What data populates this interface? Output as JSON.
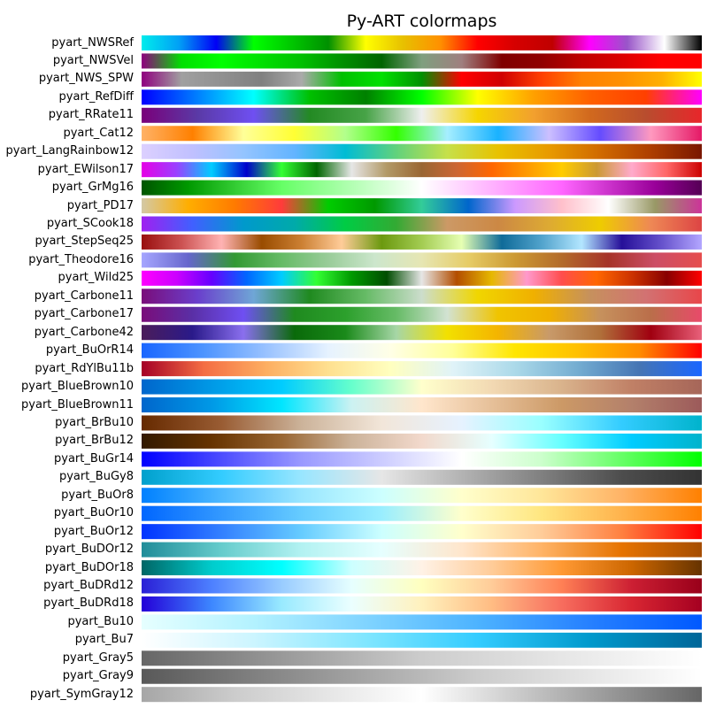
{
  "chart_data": {
    "type": "colormap",
    "title": "Py-ART colormaps",
    "colormaps": [
      {
        "name": "pyart_NWSRef",
        "colors": [
          "#00ecec",
          "#01a0f6",
          "#0000f6",
          "#00ff00",
          "#00c800",
          "#009000",
          "#ffff00",
          "#e7c000",
          "#ff9000",
          "#ff0000",
          "#d60000",
          "#c00000",
          "#ff00ff",
          "#9955c9",
          "#ffffff",
          "#000000"
        ]
      },
      {
        "name": "pyart_NWSVel",
        "colors": [
          "#90007f",
          "#00e000",
          "#00ff00",
          "#00e000",
          "#00c000",
          "#009000",
          "#006400",
          "#7f9f7f",
          "#9f7f7f",
          "#7f0000",
          "#900000",
          "#c00000",
          "#dc0000",
          "#ff0000",
          "#ff0000"
        ]
      },
      {
        "name": "pyart_NWS_SPW",
        "colors": [
          "#90007f",
          "#a0a0a0",
          "#909090",
          "#808080",
          "#aaaaaa",
          "#00c000",
          "#00e000",
          "#009000",
          "#ff0000",
          "#d00000",
          "#ff4000",
          "#ff8000",
          "#ff9000",
          "#ffb000",
          "#ffff00"
        ]
      },
      {
        "name": "pyart_RefDiff",
        "colors": [
          "#0000ff",
          "#0080ff",
          "#00ffff",
          "#00c000",
          "#008000",
          "#00ff00",
          "#ffff00",
          "#ffa000",
          "#ff6000",
          "#ff4000",
          "#ff00ff"
        ]
      },
      {
        "name": "pyart_RRate11",
        "colors": [
          "#7a007a",
          "#5a3aa6",
          "#6f4ff2",
          "#238a23",
          "#47a347",
          "#efefef",
          "#f5d500",
          "#f2a02e",
          "#d1691e",
          "#b84d2e",
          "#e8262b"
        ]
      },
      {
        "name": "pyart_Cat12",
        "colors": [
          "#ffb266",
          "#ff8000",
          "#ffff99",
          "#ffff33",
          "#b2ff8c",
          "#33ff00",
          "#a6eeff",
          "#19b2ff",
          "#ccbfff",
          "#654cff",
          "#ff99bf",
          "#e51966"
        ]
      },
      {
        "name": "pyart_LangRainbow12",
        "colors": [
          "#dcd0ff",
          "#c0c0ff",
          "#94c4ff",
          "#63b4ff",
          "#00bcd4",
          "#61d27c",
          "#c6e04a",
          "#e8c200",
          "#e89a00",
          "#d06a00",
          "#ad3e00",
          "#7a1700"
        ]
      },
      {
        "name": "pyart_EWilson17",
        "colors": [
          "#e600e6",
          "#9a40ff",
          "#00ccff",
          "#0000cc",
          "#33ff33",
          "#006600",
          "#e6e6e6",
          "#b29966",
          "#996633",
          "#cc6633",
          "#ff6600",
          "#ff9900",
          "#ffcc00",
          "#cc9933",
          "#ffaacc",
          "#ff6666",
          "#cc0000"
        ]
      },
      {
        "name": "pyart_GrMg16",
        "colors": [
          "#005500",
          "#009900",
          "#33cc33",
          "#66ff66",
          "#99ff99",
          "#ccffcc",
          "#ffffff",
          "#ffccff",
          "#ff99ff",
          "#ff66ff",
          "#cc33cc",
          "#990099",
          "#550055"
        ]
      },
      {
        "name": "pyart_PD17",
        "colors": [
          "#d3c9a6",
          "#ffae00",
          "#ff7a00",
          "#ff3b3b",
          "#00cc00",
          "#009900",
          "#33cc99",
          "#0066cc",
          "#cc99ff",
          "#ffc0cb",
          "#ffffff",
          "#999966",
          "#cc3399"
        ]
      },
      {
        "name": "pyart_SCook18",
        "colors": [
          "#a020f0",
          "#4060ff",
          "#0099cc",
          "#00aaaa",
          "#00cc44",
          "#33aa33",
          "#cc9966",
          "#cc8844",
          "#ddaa33",
          "#eecc00",
          "#ee8855",
          "#dd4444"
        ]
      },
      {
        "name": "pyart_StepSeq25",
        "colors": [
          "#990f0f",
          "#cc5252",
          "#ffb3b3",
          "#994c00",
          "#cc8033",
          "#ffcc99",
          "#6b990f",
          "#a3cc52",
          "#e6ffb3",
          "#0f6b99",
          "#52a3cc",
          "#b3e6ff",
          "#260f99",
          "#6652cc",
          "#b3a6ff"
        ]
      },
      {
        "name": "pyart_Theodore16",
        "colors": [
          "#a6a6ff",
          "#6666cc",
          "#339933",
          "#66bb66",
          "#99cc99",
          "#cce6cc",
          "#e6e6b3",
          "#e6cc66",
          "#cc9933",
          "#b36b2a",
          "#a63329",
          "#cc4d66",
          "#e64d4d"
        ]
      },
      {
        "name": "pyart_Wild25",
        "colors": [
          "#ff00ff",
          "#cc00ff",
          "#6600ff",
          "#0066ff",
          "#00ccff",
          "#33ff33",
          "#009900",
          "#004d00",
          "#e6e6e6",
          "#b34d00",
          "#e6b800",
          "#ff99cc",
          "#ff4d4d",
          "#ff6600",
          "#cc3300",
          "#880000",
          "#ff0000"
        ]
      },
      {
        "name": "pyart_Carbone11",
        "colors": [
          "#7a0d7a",
          "#6a3fcc",
          "#6fa6d6",
          "#1f8a1f",
          "#66bb66",
          "#ccddcc",
          "#f0d600",
          "#f0b000",
          "#c6915d",
          "#d27272",
          "#e8464a"
        ]
      },
      {
        "name": "pyart_Carbone17",
        "colors": [
          "#7a0d7a",
          "#5a2fa6",
          "#6f4ff2",
          "#1f8a1f",
          "#2ca02c",
          "#66bb66",
          "#d2e2d2",
          "#f0c400",
          "#f0b000",
          "#c6915d",
          "#ba6e4a",
          "#e84a6a"
        ]
      },
      {
        "name": "pyart_Carbone42",
        "colors": [
          "#4b1c5a",
          "#2a1a8a",
          "#8a6fee",
          "#0a6a0a",
          "#1a8a1a",
          "#a6d6a6",
          "#f2e000",
          "#f4b400",
          "#c89a6a",
          "#b0703a",
          "#a00010",
          "#e8607a"
        ]
      },
      {
        "name": "pyart_BuOrR14",
        "colors": [
          "#1a66ff",
          "#4d94ff",
          "#99c2ff",
          "#e6f2ff",
          "#ffffe6",
          "#ffff99",
          "#ffe600",
          "#ffc000",
          "#ff8c00",
          "#ff0000"
        ]
      },
      {
        "name": "pyart_RdYlBu11b",
        "colors": [
          "#a50026",
          "#f46d43",
          "#fdae61",
          "#fee090",
          "#ffffbf",
          "#e0f3f8",
          "#abd9e9",
          "#74add1",
          "#4575b4",
          "#1a66ff"
        ]
      },
      {
        "name": "pyart_BlueBrown10",
        "colors": [
          "#0066cc",
          "#0099e6",
          "#00ccff",
          "#66ffcc",
          "#ffffcc",
          "#f2d9b3",
          "#d9b38c",
          "#c08066",
          "#a66659"
        ]
      },
      {
        "name": "pyart_BlueBrown11",
        "colors": [
          "#0066cc",
          "#0099e6",
          "#00e6ff",
          "#ccf2f2",
          "#ffe6cc",
          "#e6c099",
          "#cc9966",
          "#b3806b",
          "#9c5a5a"
        ]
      },
      {
        "name": "pyart_BrBu10",
        "colors": [
          "#662a00",
          "#995c33",
          "#ccb39a",
          "#f2e6d9",
          "#e6f2ff",
          "#99ffff",
          "#33ccff",
          "#00b3cc"
        ]
      },
      {
        "name": "pyart_BrBu12",
        "colors": [
          "#331a00",
          "#663300",
          "#996633",
          "#ccb39a",
          "#f2d9cc",
          "#e6ffff",
          "#66ffff",
          "#00ccff",
          "#00b3cc"
        ]
      },
      {
        "name": "pyart_BuGr14",
        "colors": [
          "#0000ff",
          "#4d4dff",
          "#9999ff",
          "#ccccff",
          "#ffffff",
          "#ccffcc",
          "#66ff66",
          "#00ff00"
        ]
      },
      {
        "name": "pyart_BuGy8",
        "colors": [
          "#00a0cc",
          "#33ccff",
          "#99e6ff",
          "#e6e6e6",
          "#b3b3b3",
          "#808080",
          "#4d4d4d",
          "#333333"
        ]
      },
      {
        "name": "pyart_BuOr8",
        "colors": [
          "#0080ff",
          "#4db8ff",
          "#99e6ff",
          "#ccffff",
          "#ffffcc",
          "#ffe699",
          "#ffb366",
          "#ff8000"
        ]
      },
      {
        "name": "pyart_BuOr10",
        "colors": [
          "#0066ff",
          "#3399ff",
          "#66ccff",
          "#99eeff",
          "#ffffcc",
          "#ffe680",
          "#ffb34d",
          "#ff8000"
        ]
      },
      {
        "name": "pyart_BuOr12",
        "colors": [
          "#0033ff",
          "#3380ff",
          "#66ccff",
          "#ccffff",
          "#ffffcc",
          "#ffcc99",
          "#ff8040",
          "#ff0000"
        ]
      },
      {
        "name": "pyart_BuDOr12",
        "colors": [
          "#1f8c99",
          "#66cccc",
          "#b3f2f2",
          "#e6ffff",
          "#ffe6cc",
          "#ffb366",
          "#e67300",
          "#a64d00"
        ]
      },
      {
        "name": "pyart_BuDOr18",
        "colors": [
          "#006666",
          "#00cccc",
          "#00ffff",
          "#ccffff",
          "#fff2e6",
          "#ffcc99",
          "#ff9933",
          "#cc6600",
          "#663300"
        ]
      },
      {
        "name": "pyart_BuDRd12",
        "colors": [
          "#2a1fd6",
          "#4d80ff",
          "#99ccff",
          "#e6ffff",
          "#ffffbf",
          "#ffcc99",
          "#ff8055",
          "#cc1f33",
          "#99001a"
        ]
      },
      {
        "name": "pyart_BuDRd18",
        "colors": [
          "#2400d8",
          "#3d87ff",
          "#99eaff",
          "#ebffff",
          "#fff1bd",
          "#ffbc83",
          "#f76d5e",
          "#d82632",
          "#a50021"
        ]
      },
      {
        "name": "pyart_Bu10",
        "colors": [
          "#e6ffff",
          "#b3f2ff",
          "#80d4ff",
          "#4db3ff",
          "#2680ff",
          "#0059ff"
        ]
      },
      {
        "name": "pyart_Bu7",
        "colors": [
          "#ffffff",
          "#ccf5ff",
          "#80e6ff",
          "#33ccff",
          "#0099cc",
          "#006699"
        ]
      },
      {
        "name": "pyart_Gray5",
        "colors": [
          "#666666",
          "#999999",
          "#cccccc",
          "#e6e6e6",
          "#ffffff"
        ]
      },
      {
        "name": "pyart_Gray9",
        "colors": [
          "#595959",
          "#808080",
          "#a6a6a6",
          "#cccccc",
          "#e6e6e6",
          "#ffffff"
        ]
      },
      {
        "name": "pyart_SymGray12",
        "colors": [
          "#a6a6a6",
          "#cccccc",
          "#e6e6e6",
          "#ffffff",
          "#cccccc",
          "#999999",
          "#666666"
        ]
      }
    ]
  }
}
